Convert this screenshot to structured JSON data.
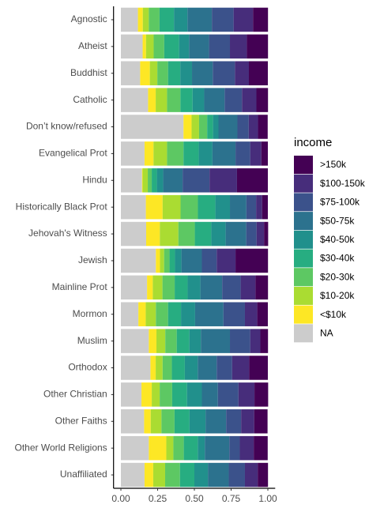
{
  "chart_data": {
    "type": "bar",
    "orientation": "horizontal",
    "stacked": true,
    "categories": [
      "Agnostic",
      "Atheist",
      "Buddhist",
      "Catholic",
      "Don’t know/refused",
      "Evangelical Prot",
      "Hindu",
      "Historically Black Prot",
      "Jehovah's Witness",
      "Jewish",
      "Mainline Prot",
      "Mormon",
      "Muslim",
      "Orthodox",
      "Other Christian",
      "Other Faiths",
      "Other World Religions",
      "Unaffiliated"
    ],
    "series": [
      {
        "name": "NA",
        "color": "#cccccc",
        "values": [
          0.116,
          0.148,
          0.131,
          0.185,
          0.426,
          0.161,
          0.144,
          0.17,
          0.172,
          0.238,
          0.178,
          0.119,
          0.19,
          0.201,
          0.14,
          0.158,
          0.19,
          0.161
        ]
      },
      {
        "name": "<$10k",
        "color": "#fde725",
        "values": [
          0.033,
          0.023,
          0.066,
          0.052,
          0.055,
          0.061,
          0.004,
          0.114,
          0.093,
          0.028,
          0.039,
          0.05,
          0.052,
          0.036,
          0.07,
          0.045,
          0.119,
          0.059
        ]
      },
      {
        "name": "$10-20k",
        "color": "#aadc32",
        "values": [
          0.041,
          0.052,
          0.051,
          0.077,
          0.051,
          0.092,
          0.035,
          0.122,
          0.126,
          0.028,
          0.066,
          0.069,
          0.06,
          0.047,
          0.054,
          0.073,
          0.048,
          0.081
        ]
      },
      {
        "name": "$20-30k",
        "color": "#5dc863",
        "values": [
          0.073,
          0.072,
          0.073,
          0.091,
          0.055,
          0.112,
          0.027,
          0.118,
          0.112,
          0.037,
          0.083,
          0.083,
          0.078,
          0.063,
          0.085,
          0.089,
          0.071,
          0.101
        ]
      },
      {
        "name": "$30-40k",
        "color": "#27ad81",
        "values": [
          0.098,
          0.101,
          0.083,
          0.083,
          0.04,
          0.104,
          0.035,
          0.119,
          0.112,
          0.037,
          0.088,
          0.088,
          0.086,
          0.088,
          0.101,
          0.102,
          0.095,
          0.098
        ]
      },
      {
        "name": "$40-50k",
        "color": "#21908c",
        "values": [
          0.092,
          0.068,
          0.08,
          0.079,
          0.037,
          0.093,
          0.043,
          0.099,
          0.098,
          0.044,
          0.087,
          0.096,
          0.078,
          0.088,
          0.101,
          0.109,
          0.048,
          0.092
        ]
      },
      {
        "name": "$50-75k",
        "color": "#2c728e",
        "values": [
          0.166,
          0.136,
          0.141,
          0.139,
          0.129,
          0.157,
          0.132,
          0.112,
          0.14,
          0.139,
          0.148,
          0.193,
          0.198,
          0.129,
          0.109,
          0.14,
          0.167,
          0.142
        ]
      },
      {
        "name": "$75-100k",
        "color": "#3b528b",
        "values": [
          0.148,
          0.142,
          0.151,
          0.118,
          0.077,
          0.1,
          0.183,
          0.066,
          0.07,
          0.101,
          0.126,
          0.146,
          0.138,
          0.105,
          0.14,
          0.102,
          0.071,
          0.11
        ]
      },
      {
        "name": "$100-150k",
        "color": "#472d7b",
        "values": [
          0.132,
          0.115,
          0.095,
          0.098,
          0.063,
          0.076,
          0.187,
          0.041,
          0.051,
          0.128,
          0.101,
          0.084,
          0.069,
          0.116,
          0.109,
          0.089,
          0.095,
          0.087
        ]
      },
      {
        "name": ">150k",
        "color": "#440154",
        "values": [
          0.102,
          0.144,
          0.129,
          0.079,
          0.066,
          0.044,
          0.21,
          0.039,
          0.028,
          0.221,
          0.085,
          0.072,
          0.052,
          0.127,
          0.093,
          0.091,
          0.095,
          0.07
        ]
      }
    ],
    "legend_title": "income",
    "legend_position": "right",
    "xlim": [
      -0.05,
      1.05
    ],
    "xticks": [
      {
        "value": 0,
        "label": "0.00"
      },
      {
        "value": 0.25,
        "label": "0.25"
      },
      {
        "value": 0.5,
        "label": "0.50"
      },
      {
        "value": 0.75,
        "label": "0.75"
      },
      {
        "value": 1,
        "label": "1.00"
      }
    ]
  }
}
